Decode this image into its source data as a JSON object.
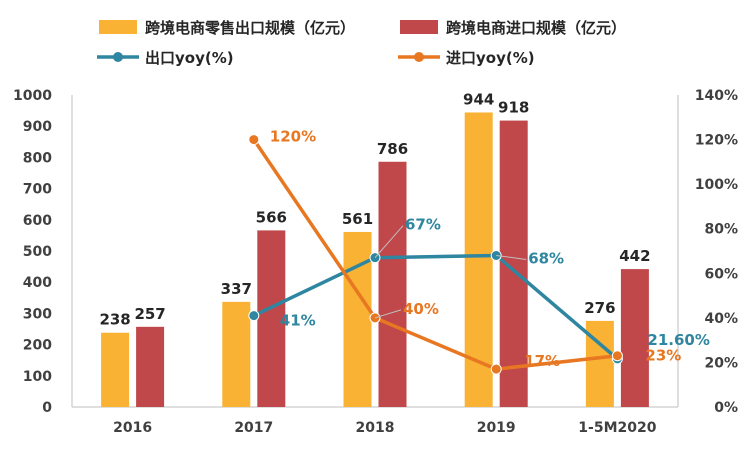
{
  "chart_data": {
    "type": "bar",
    "categories": [
      "2016",
      "2017",
      "2018",
      "2019",
      "1-5M2020"
    ],
    "y_left": {
      "ticks": [
        0,
        100,
        200,
        300,
        400,
        500,
        600,
        700,
        800,
        900,
        1000
      ],
      "ylim": [
        0,
        1000
      ]
    },
    "y_right": {
      "ticks": [
        "0%",
        "20%",
        "40%",
        "60%",
        "80%",
        "100%",
        "120%",
        "140%"
      ],
      "ylim": [
        0,
        140
      ]
    },
    "bar_series": [
      {
        "name": "跨境电商零售出口规模（亿元）",
        "color": "#F9B233",
        "values": [
          238,
          337,
          561,
          944,
          276
        ],
        "labels": [
          "238",
          "337",
          "561",
          "944",
          "276"
        ]
      },
      {
        "name": "跨境电商进口规模（亿元）",
        "color": "#C0474A",
        "values": [
          257,
          566,
          786,
          918,
          442
        ],
        "labels": [
          "257",
          "566",
          "786",
          "918",
          "442"
        ]
      }
    ],
    "line_series": [
      {
        "name": "出口yoy(%)",
        "color": "#2E86A0",
        "values": [
          null,
          41,
          67,
          68,
          21.6
        ],
        "labels": [
          "",
          "41%",
          "67%",
          "68%",
          "21.60%"
        ]
      },
      {
        "name": "进口yoy(%)",
        "color": "#E87722",
        "values": [
          null,
          120,
          40,
          17,
          23
        ],
        "labels": [
          "",
          "120%",
          "40%",
          "17%",
          "23%"
        ]
      }
    ],
    "legend_position": "top",
    "grid": false
  }
}
